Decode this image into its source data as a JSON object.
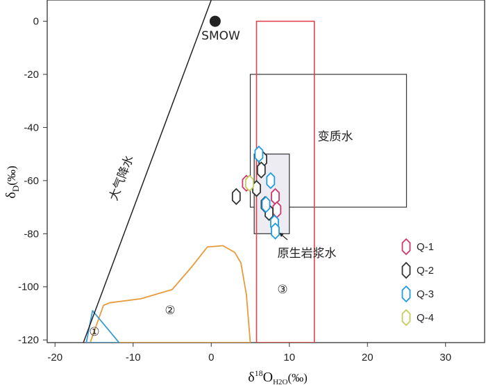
{
  "chart_data": {
    "type": "scatter",
    "xlim": [
      -21,
      35
    ],
    "ylim": [
      -121,
      8
    ],
    "x_ticks": [
      -20,
      -10,
      0,
      10,
      20,
      30
    ],
    "y_ticks": [
      0,
      -20,
      -40,
      -60,
      -80,
      -100,
      -120
    ],
    "x_tick_labels": [
      "-20",
      "-10",
      "0",
      "10",
      "20",
      "30"
    ],
    "y_tick_labels": [
      "0",
      "-20",
      "-40",
      "-60",
      "-80",
      "-100",
      "-120"
    ],
    "xlabel": {
      "prefix": "δ",
      "sup": "18",
      "main": "O",
      "sub": "H2O",
      "unit": "(‰)"
    },
    "ylabel": {
      "main": "δ",
      "sub": "D",
      "unit": "(‰)"
    },
    "grid": false,
    "colors": {
      "Q-1": "#d1356b",
      "Q-2": "#333333",
      "Q-3": "#1f9be0",
      "Q-4": "#c4cc5a",
      "red_box": "#e0404a",
      "orange": "#e89a3a",
      "blue_triangle": "#3a9bd5",
      "meteoric_line": "#222222",
      "box_line": "#333333",
      "magmatic_fill": "#ececf2"
    },
    "series": [
      {
        "name": "Q-1",
        "points": [
          [
            4.5,
            -61
          ],
          [
            8.2,
            -66
          ],
          [
            8.4,
            -71
          ]
        ]
      },
      {
        "name": "Q-2",
        "points": [
          [
            6.6,
            -52
          ],
          [
            6.4,
            -56
          ],
          [
            3.2,
            -66
          ],
          [
            5.8,
            -63
          ],
          [
            7.4,
            -72
          ],
          [
            6.9,
            -69
          ]
        ]
      },
      {
        "name": "Q-3",
        "points": [
          [
            6.1,
            -50
          ],
          [
            7.6,
            -60
          ],
          [
            7.0,
            -69
          ],
          [
            8.1,
            -76
          ],
          [
            8.2,
            -79
          ]
        ]
      },
      {
        "name": "Q-4",
        "points": [
          [
            4.9,
            -61
          ]
        ]
      }
    ],
    "reference_point": {
      "label": "SMOW",
      "x": 0.5,
      "y": 0
    },
    "meteoric_water_line": {
      "label": "大气降水",
      "points": [
        [
          -16.5,
          -122
        ],
        [
          0,
          8
        ]
      ]
    },
    "regions": [
      {
        "id": "metamorphic",
        "label": "变质水",
        "x": [
          5,
          25
        ],
        "y": [
          -70,
          -20
        ]
      },
      {
        "id": "magmatic",
        "label": "原生岩浆水",
        "x": [
          5.5,
          10
        ],
        "y": [
          -80,
          -50
        ]
      },
      {
        "id": "region-3",
        "label": "③",
        "x": [
          5.8,
          13.2
        ],
        "y": [
          -121,
          0
        ]
      },
      {
        "id": "region-2",
        "label": "②"
      },
      {
        "id": "region-1",
        "label": "①"
      }
    ],
    "legend": {
      "placement": "right",
      "entries": [
        "Q-1",
        "Q-2",
        "Q-3",
        "Q-4"
      ]
    }
  }
}
